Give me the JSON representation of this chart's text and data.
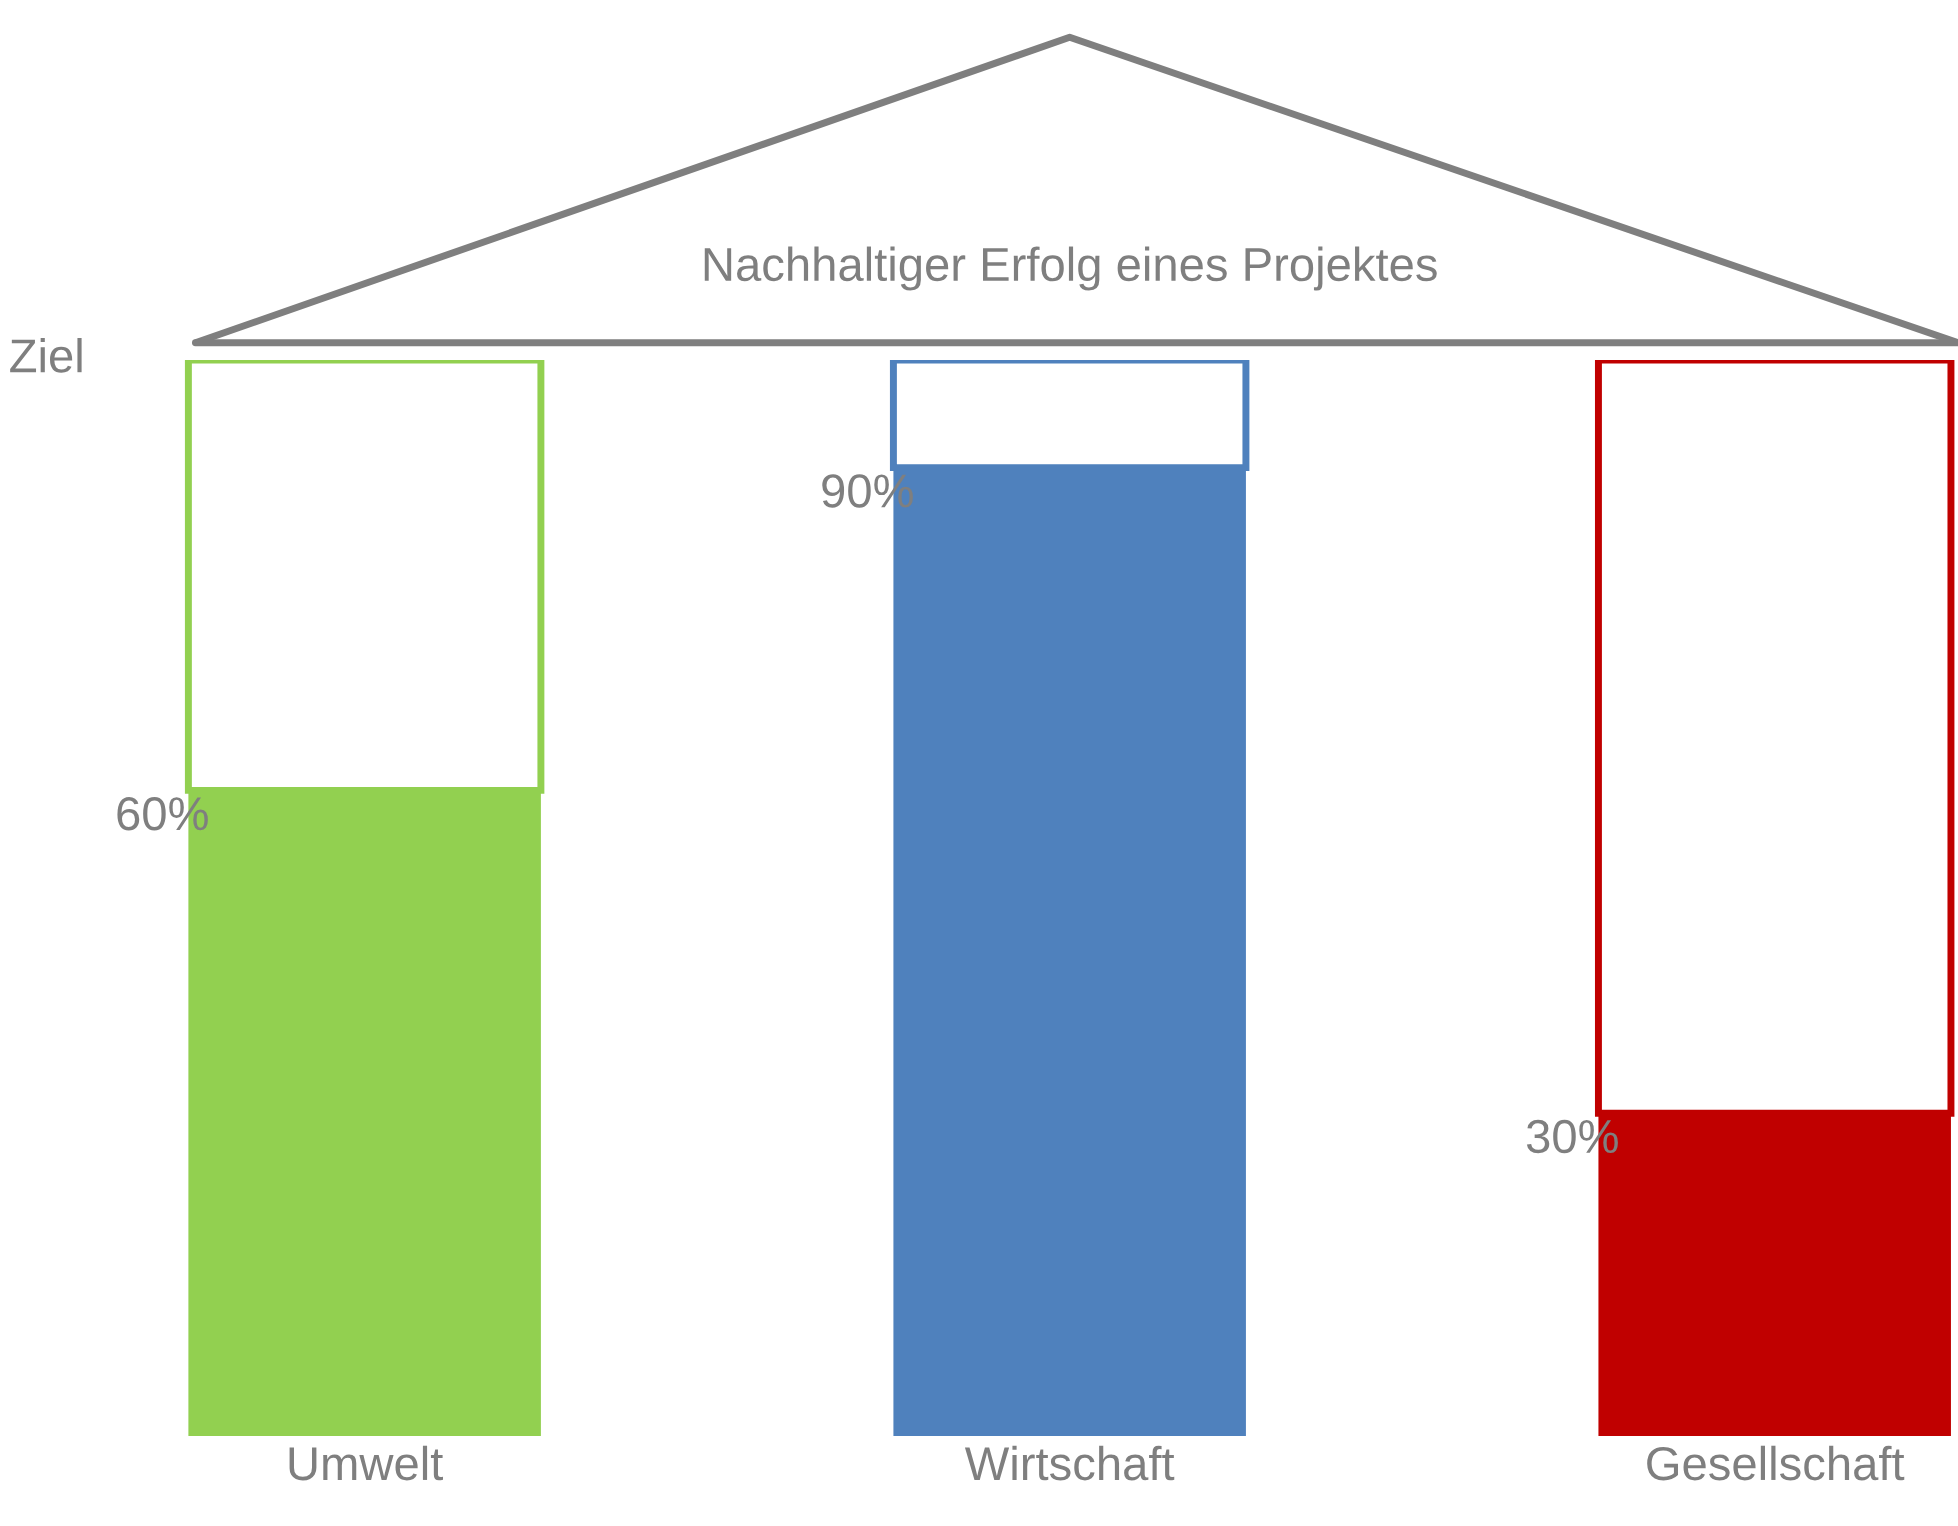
{
  "chart_data": {
    "type": "bar",
    "title": "Nachhaltiger Erfolg eines Projektes",
    "categories": [
      "Umwelt",
      "Wirtschaft",
      "Gesellschaft"
    ],
    "stacked": true,
    "series": [
      {
        "colors": [
          "#92d050",
          "#4f81bd",
          "#c00000"
        ],
        "values": [
          60,
          90,
          30
        ],
        "value_labels": [
          "60%",
          "90%",
          "30%"
        ]
      },
      {
        "color": "#ffffff",
        "values": [
          40,
          10,
          70
        ]
      }
    ],
    "ylim": [
      0,
      100
    ],
    "tick_labels": "x",
    "annotations": [
      "Ziel"
    ]
  }
}
